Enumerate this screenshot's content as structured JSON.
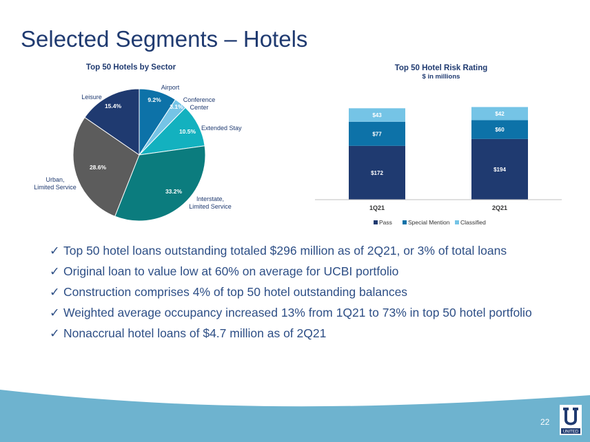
{
  "slide": {
    "title": "Selected Segments – Hotels",
    "page_number": "22",
    "logo_text": "UNITED"
  },
  "colors": {
    "navy": "#1f3a70",
    "teal": "#0b7c86",
    "light_blue": "#75c4e6",
    "dark_gray": "#5c5c5c",
    "wave": "#6eb3cf"
  },
  "bullets": [
    "Top 50 hotel loans outstanding totaled $296 million as of 2Q21, or 3% of total loans",
    "Original loan to value low at 60% on average for UCBI portfolio",
    "Construction comprises 4% of top 50 hotel outstanding balances",
    "Weighted average occupancy increased 13% from 1Q21 to 73% in top 50 hotel portfolio",
    "Nonaccrual hotel loans of $4.7 million as of 2Q21"
  ],
  "chart_data": [
    {
      "type": "pie",
      "title": "Top 50 Hotels by Sector",
      "slices": [
        {
          "label": [
            "Airport"
          ],
          "value": 9.2,
          "value_label": "9.2%",
          "color": "#0d72a8"
        },
        {
          "label": [
            "Conference",
            "Center"
          ],
          "value": 3.1,
          "value_label": "3.1%",
          "color": "#75c4e6"
        },
        {
          "label": [
            "Extended Stay"
          ],
          "value": 10.5,
          "value_label": "10.5%",
          "color": "#13b1bf"
        },
        {
          "label": [
            "Interstate,",
            "Limited Service"
          ],
          "value": 33.2,
          "value_label": "33.2%",
          "color": "#0b7c7e"
        },
        {
          "label": [
            "Urban,",
            "Limited Service"
          ],
          "value": 28.6,
          "value_label": "28.6%",
          "color": "#5c5c5c"
        },
        {
          "label": [
            "Leisure"
          ],
          "value": 15.4,
          "value_label": "15.4%",
          "color": "#1f3a70"
        }
      ]
    },
    {
      "type": "bar",
      "stacked": true,
      "title": "Top 50 Hotel Risk Rating",
      "subtitle": "$ in millions",
      "categories": [
        "1Q21",
        "2Q21"
      ],
      "series": [
        {
          "name": "Pass",
          "values": [
            172,
            194
          ],
          "value_labels": [
            "$172",
            "$194"
          ],
          "color": "#1f3a70"
        },
        {
          "name": "Special Mention",
          "values": [
            77,
            60
          ],
          "value_labels": [
            "$77",
            "$60"
          ],
          "color": "#0d72a8"
        },
        {
          "name": "Classified",
          "values": [
            43,
            42
          ],
          "value_labels": [
            "$43",
            "$42"
          ],
          "color": "#75c4e6"
        }
      ],
      "ylim": [
        0,
        330
      ],
      "grid": false,
      "legend": "bottom"
    }
  ]
}
